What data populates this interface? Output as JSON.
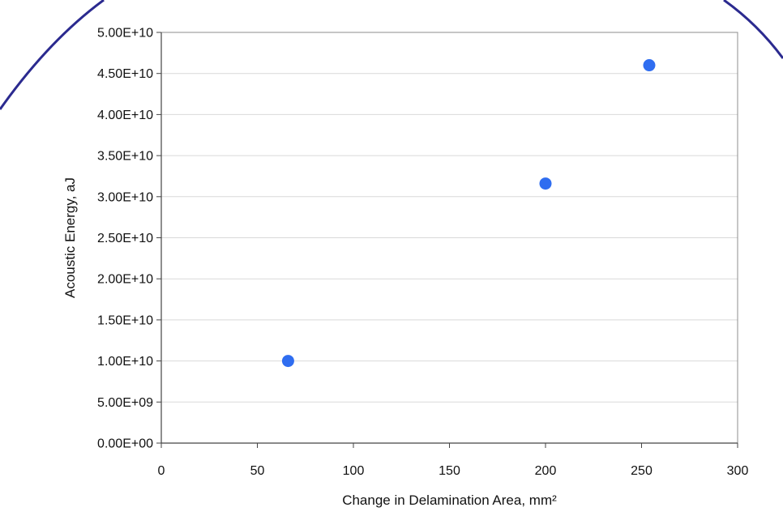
{
  "chart_data": {
    "type": "scatter",
    "title": "",
    "xlabel": "Change in Delamination Area, mm²",
    "ylabel": "Acoustic Energy, aJ",
    "xlim": [
      0,
      300
    ],
    "ylim": [
      0,
      50000000000
    ],
    "x_ticks": [
      0,
      50,
      100,
      150,
      200,
      250,
      300
    ],
    "x_tick_labels": [
      "0",
      "50",
      "100",
      "150",
      "200",
      "250",
      "300"
    ],
    "y_ticks": [
      0,
      5000000000,
      10000000000,
      15000000000,
      20000000000,
      25000000000,
      30000000000,
      35000000000,
      40000000000,
      45000000000,
      50000000000
    ],
    "y_tick_labels": [
      "0.00E+00",
      "5.00E+09",
      "1.00E+10",
      "1.50E+10",
      "2.00E+10",
      "2.50E+10",
      "3.00E+10",
      "3.50E+10",
      "4.00E+10",
      "4.50E+10",
      "5.00E+10"
    ],
    "grid": "horizontal",
    "legend": "none",
    "series": [
      {
        "color": "#2f6df0",
        "points": [
          {
            "x": 66,
            "y": 10000000000
          },
          {
            "x": 200,
            "y": 31600000000
          },
          {
            "x": 254,
            "y": 46000000000
          }
        ]
      }
    ],
    "colors": {
      "marker": "#2f6df0",
      "grid": "#d9d9d9",
      "axis": "#444444",
      "overlay_arc": "#2b2a8f"
    }
  }
}
